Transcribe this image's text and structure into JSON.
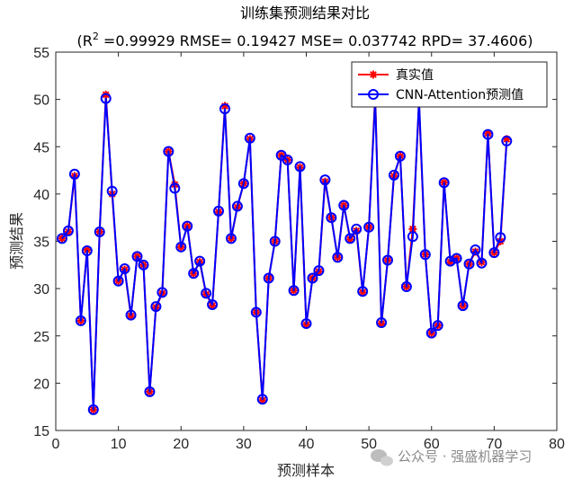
{
  "chart_data": {
    "type": "line",
    "title": "训练集预测结果对比",
    "subtitle_prefix": "(R",
    "subtitle_sup": "2",
    "subtitle_rest": " =0.99929 RMSE= 0.19427 MSE= 0.037742 RPD= 37.4606)",
    "xlabel": "预测样本",
    "ylabel": "预测结果",
    "xlim": [
      0,
      80
    ],
    "ylim": [
      15,
      55
    ],
    "xticks": [
      "0",
      "10",
      "20",
      "30",
      "40",
      "50",
      "60",
      "70",
      "80"
    ],
    "yticks": [
      "15",
      "20",
      "25",
      "30",
      "35",
      "40",
      "45",
      "50",
      "55"
    ],
    "grid": false,
    "legend_position": "top-right",
    "x": [
      1,
      2,
      3,
      4,
      5,
      6,
      7,
      8,
      9,
      10,
      11,
      12,
      13,
      14,
      15,
      16,
      17,
      18,
      19,
      20,
      21,
      22,
      23,
      24,
      25,
      26,
      27,
      28,
      29,
      30,
      31,
      32,
      33,
      34,
      35,
      36,
      37,
      38,
      39,
      40,
      41,
      42,
      43,
      44,
      45,
      46,
      47,
      48,
      49,
      50,
      51,
      52,
      53,
      54,
      55,
      56,
      57,
      58,
      59,
      60,
      61,
      62,
      63,
      64,
      65,
      66,
      67,
      68,
      69,
      70,
      71,
      72
    ],
    "series": [
      {
        "name": "真实值",
        "color": "#ff0000",
        "marker": "asterisk",
        "values": [
          35.3,
          36.0,
          41.9,
          26.6,
          34.1,
          17.2,
          36.0,
          50.5,
          40.0,
          30.8,
          32.0,
          27.1,
          33.4,
          32.5,
          19.1,
          28.0,
          29.5,
          44.5,
          41.0,
          34.4,
          36.6,
          31.6,
          32.8,
          29.4,
          28.2,
          38.1,
          49.3,
          35.3,
          38.6,
          41.1,
          45.8,
          27.5,
          18.2,
          31.1,
          35.0,
          44.1,
          43.6,
          29.8,
          42.8,
          26.2,
          31.1,
          31.8,
          41.3,
          37.5,
          33.3,
          38.8,
          35.2,
          36.1,
          29.6,
          36.5,
          50.5,
          26.3,
          33.0,
          41.9,
          44.0,
          30.2,
          36.3,
          49.5,
          33.6,
          25.3,
          26.1,
          41.2,
          32.8,
          33.2,
          28.2,
          32.6,
          33.9,
          32.8,
          46.4,
          33.8,
          35.0,
          45.8
        ]
      },
      {
        "name": "CNN-Attention预测值",
        "color": "#0000ff",
        "marker": "circle",
        "values": [
          35.3,
          36.1,
          42.1,
          26.6,
          34.0,
          17.2,
          36.0,
          50.1,
          40.3,
          30.8,
          32.1,
          27.2,
          33.4,
          32.5,
          19.1,
          28.1,
          29.6,
          44.5,
          40.6,
          34.4,
          36.6,
          31.6,
          32.9,
          29.5,
          28.3,
          38.2,
          49.0,
          35.3,
          38.7,
          41.1,
          45.9,
          27.5,
          18.3,
          31.1,
          35.0,
          44.1,
          43.6,
          29.8,
          42.9,
          26.3,
          31.1,
          31.9,
          41.5,
          37.5,
          33.3,
          38.8,
          35.3,
          36.3,
          29.7,
          36.5,
          50.0,
          26.4,
          33.0,
          42.0,
          44.0,
          30.2,
          35.5,
          50.0,
          33.6,
          25.3,
          26.1,
          41.2,
          32.9,
          33.2,
          28.2,
          32.6,
          34.1,
          32.7,
          46.3,
          33.8,
          35.4,
          45.6
        ]
      }
    ]
  },
  "watermark": {
    "text": "公众号 · 强盛机器学习"
  }
}
